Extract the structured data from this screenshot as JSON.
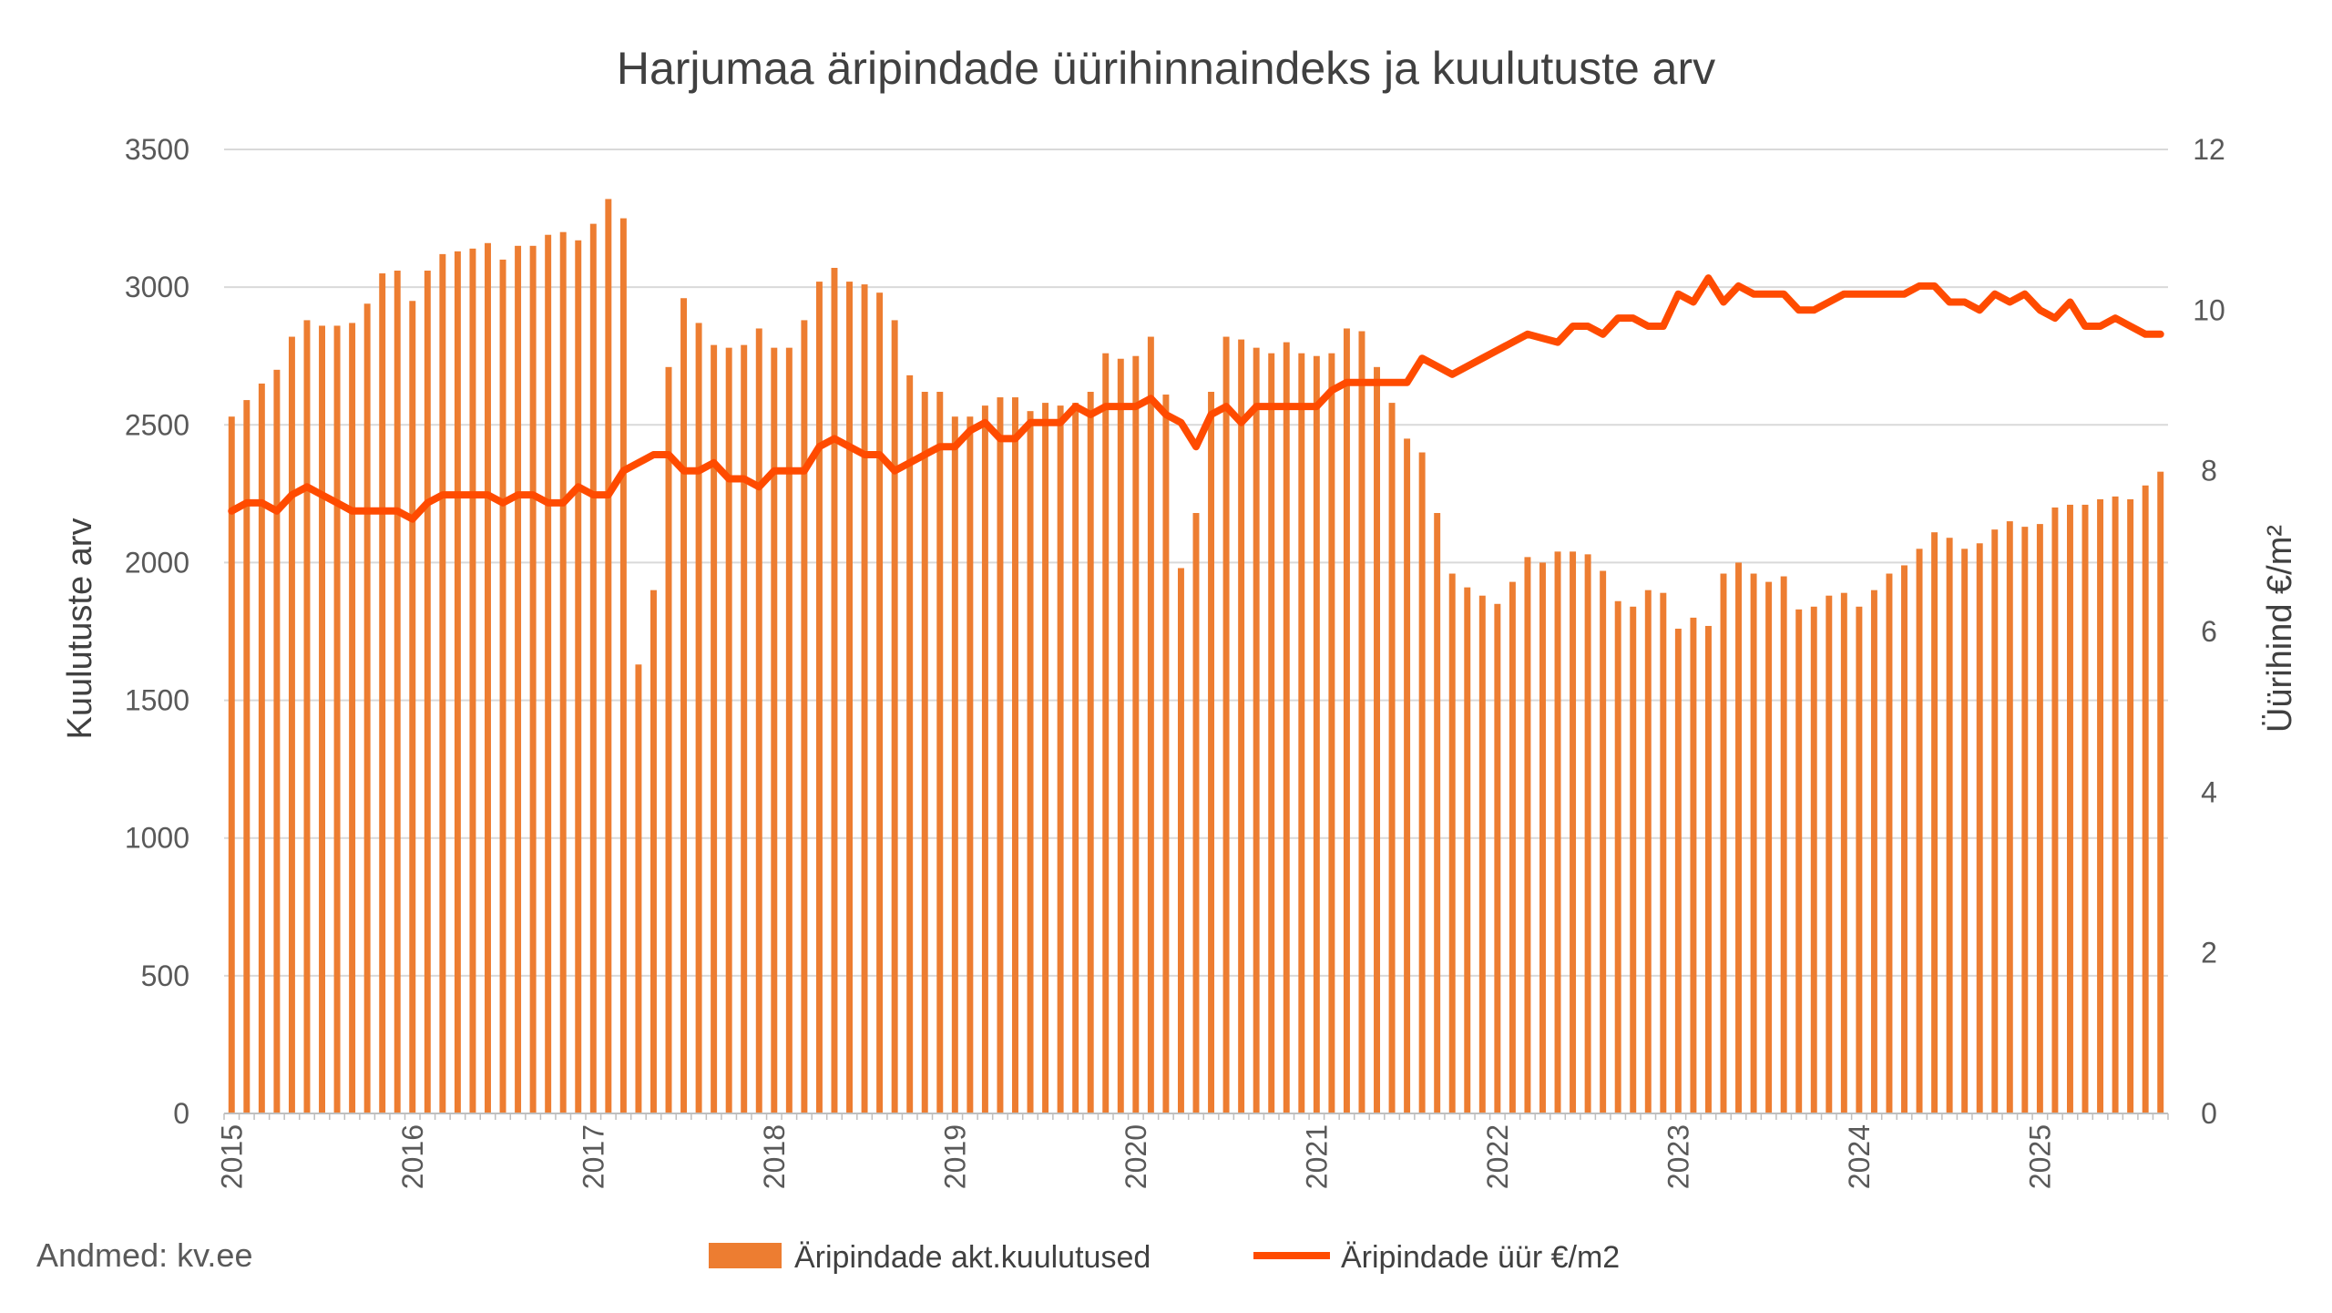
{
  "source_note": "Andmed: kv.ee",
  "colors": {
    "bars": "#ED7D31",
    "line": "#FF4B00",
    "grid": "#d9d9d9",
    "text": "#404040"
  },
  "chart_data": {
    "type": "bar+line",
    "title": "Harjumaa äripindade üürihinnaindeks ja kuulutuste arv",
    "ylabel_left": "Kuulutuste arv",
    "ylabel_right": "Üürihind €/m²",
    "ylim_left": [
      0,
      3500
    ],
    "ylim_right": [
      0,
      12
    ],
    "yticks_left": [
      "0",
      "500",
      "1000",
      "1500",
      "2000",
      "2500",
      "3000",
      "3500"
    ],
    "yticks_right": [
      "0",
      "2",
      "4",
      "6",
      "8",
      "10",
      "12"
    ],
    "x_year_labels": [
      "2015",
      "2016",
      "2017",
      "2018",
      "2019",
      "2020",
      "2021",
      "2022",
      "2023",
      "2024",
      "2025"
    ],
    "x_start": "2015-01",
    "grid": "horizontal",
    "legend_position": "bottom",
    "series": [
      {
        "name": "Äripindade akt.kuulutused",
        "type": "bar",
        "axis": "left",
        "values": [
          2530,
          2590,
          2650,
          2700,
          2820,
          2880,
          2860,
          2860,
          2870,
          2940,
          3050,
          3060,
          2950,
          3060,
          3120,
          3130,
          3140,
          3160,
          3100,
          3150,
          3150,
          3190,
          3200,
          3170,
          3230,
          3320,
          3250,
          1630,
          1900,
          2710,
          2960,
          2870,
          2790,
          2780,
          2790,
          2850,
          2780,
          2780,
          2880,
          3020,
          3070,
          3020,
          3010,
          2980,
          2880,
          2680,
          2620,
          2620,
          2530,
          2530,
          2570,
          2600,
          2600,
          2550,
          2580,
          2570,
          2580,
          2620,
          2760,
          2740,
          2750,
          2820,
          2610,
          1980,
          2180,
          2620,
          2820,
          2810,
          2780,
          2760,
          2800,
          2760,
          2750,
          2760,
          2850,
          2840,
          2710,
          2580,
          2450,
          2400,
          2180,
          1960,
          1910,
          1880,
          1850,
          1930,
          2020,
          2000,
          2040,
          2040,
          2030,
          1970,
          1860,
          1840,
          1900,
          1890,
          1760,
          1800,
          1770,
          1960,
          2000,
          1960,
          1930,
          1950,
          1830,
          1840,
          1880,
          1890,
          1840,
          1900,
          1960,
          1990,
          2050,
          2110,
          2090,
          2050,
          2070,
          2120,
          2150,
          2130,
          2140,
          2200,
          2210,
          2210,
          2230,
          2240,
          2230,
          2280,
          2330
        ]
      },
      {
        "name": "Äripindade üür €/m2",
        "type": "line",
        "axis": "right",
        "values": [
          7.5,
          7.6,
          7.6,
          7.5,
          7.7,
          7.8,
          7.7,
          7.6,
          7.5,
          7.5,
          7.5,
          7.5,
          7.4,
          7.6,
          7.7,
          7.7,
          7.7,
          7.7,
          7.6,
          7.7,
          7.7,
          7.6,
          7.6,
          7.8,
          7.7,
          7.7,
          8.0,
          8.1,
          8.2,
          8.2,
          8.0,
          8.0,
          8.1,
          7.9,
          7.9,
          7.8,
          8.0,
          8.0,
          8.0,
          8.3,
          8.4,
          8.3,
          8.2,
          8.2,
          8.0,
          8.1,
          8.2,
          8.3,
          8.3,
          8.5,
          8.6,
          8.4,
          8.4,
          8.6,
          8.6,
          8.6,
          8.8,
          8.7,
          8.8,
          8.8,
          8.8,
          8.9,
          8.7,
          8.6,
          8.3,
          8.7,
          8.8,
          8.6,
          8.8,
          8.8,
          8.8,
          8.8,
          8.8,
          9.0,
          9.1,
          9.1,
          9.1,
          9.1,
          9.1,
          9.4,
          9.3,
          9.2,
          9.3,
          9.4,
          9.5,
          9.6,
          9.7,
          9.65,
          9.6,
          9.8,
          9.8,
          9.7,
          9.9,
          9.9,
          9.8,
          9.8,
          10.2,
          10.1,
          10.4,
          10.1,
          10.3,
          10.2,
          10.2,
          10.2,
          10.0,
          10.0,
          10.1,
          10.2,
          10.2,
          10.2,
          10.2,
          10.2,
          10.3,
          10.3,
          10.1,
          10.1,
          10.0,
          10.2,
          10.1,
          10.2,
          10.0,
          9.9,
          10.1,
          9.8,
          9.8,
          9.9,
          9.8,
          9.7,
          9.7
        ]
      }
    ]
  }
}
